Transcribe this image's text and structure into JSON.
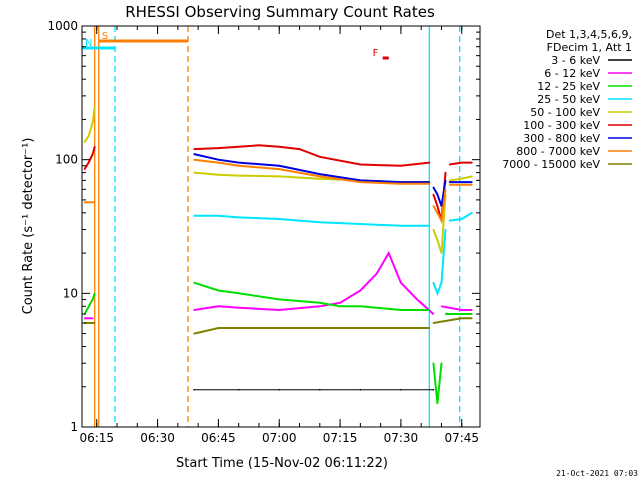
{
  "chart_data": {
    "type": "line",
    "title": "RHESSI Observing Summary Count Rates",
    "xlabel": "Start Time (15-Nov-02 06:11:22)",
    "ylabel": "Count Rate (s⁻¹ detector⁻¹)",
    "yscale": "log",
    "xlim": [
      "06:11:22",
      "07:49:30"
    ],
    "ylim": [
      1,
      1000
    ],
    "x_ticks": [
      "06:15",
      "06:30",
      "06:45",
      "07:00",
      "07:15",
      "07:30",
      "07:45"
    ],
    "y_ticks": [
      "1",
      "10",
      "100",
      "1000"
    ],
    "legend": {
      "placement": "right",
      "header": [
        "Det 1,3,4,5,6,9,",
        "FDecim 1, Att 1"
      ],
      "entries": [
        {
          "label": "3 - 6 keV",
          "color": "#000000"
        },
        {
          "label": "6 - 12 keV",
          "color": "#ff00ff"
        },
        {
          "label": "12 - 25 keV",
          "color": "#00e000"
        },
        {
          "label": "25 - 50 keV",
          "color": "#00e5ff"
        },
        {
          "label": "50 - 100 keV",
          "color": "#cccc00"
        },
        {
          "label": "100 - 300 keV",
          "color": "#e00000"
        },
        {
          "label": "300 - 800 keV",
          "color": "#0000e0"
        },
        {
          "label": "800 - 7000 keV",
          "color": "#ff7f00"
        },
        {
          "label": "7000 - 15000 keV",
          "color": "#808000"
        }
      ]
    },
    "markers": [
      {
        "label": "S",
        "color": "#ff7f00",
        "from": "06:15:30",
        "to": "06:37:30"
      },
      {
        "label": "N",
        "color": "#00e5ff",
        "from": "06:11:22",
        "to": "06:19:30"
      },
      {
        "label": "F",
        "color": "#e00000",
        "from": "07:25:30",
        "to": "07:27:00"
      }
    ],
    "vlines": [
      {
        "time": "06:14:30",
        "color": "#ff7f00",
        "style": "solid"
      },
      {
        "time": "06:15:30",
        "color": "#ff7f00",
        "style": "solid"
      },
      {
        "time": "06:19:30",
        "color": "#00e5ff",
        "style": "dashed"
      },
      {
        "time": "06:37:30",
        "color": "#ff7f00",
        "style": "dashed"
      },
      {
        "time": "07:37:00",
        "color": "#00e5ff",
        "style": "solid"
      },
      {
        "time": "07:44:30",
        "color": "#00e5ff",
        "style": "dashed"
      }
    ],
    "series": [
      {
        "name": "3 - 6 keV",
        "color": "#000000",
        "segments": [
          {
            "x": [
              "06:39:00",
              "06:50:00",
              "07:00:00",
              "07:10:00",
              "07:20:00",
              "07:30:00",
              "07:38:00"
            ],
            "y": [
              1.9,
              1.9,
              1.9,
              1.9,
              1.9,
              1.9,
              1.9
            ]
          }
        ]
      },
      {
        "name": "6 - 12 keV",
        "color": "#ff00ff",
        "segments": [
          {
            "x": [
              "06:12:00",
              "06:14:00"
            ],
            "y": [
              6.5,
              6.5
            ]
          },
          {
            "x": [
              "06:39:00",
              "06:45:00",
              "06:50:00",
              "07:00:00",
              "07:10:00",
              "07:15:00",
              "07:20:00",
              "07:24:00",
              "07:27:00",
              "07:30:00",
              "07:34:00",
              "07:38:00"
            ],
            "y": [
              7.5,
              8,
              7.8,
              7.5,
              8,
              8.5,
              10.5,
              14,
              20,
              12,
              9,
              7
            ]
          },
          {
            "x": [
              "07:40:00",
              "07:45:00",
              "07:47:30"
            ],
            "y": [
              8,
              7.5,
              7.5
            ]
          }
        ]
      },
      {
        "name": "12 - 25 keV",
        "color": "#00e000",
        "segments": [
          {
            "x": [
              "06:12:00",
              "06:14:00",
              "06:14:30"
            ],
            "y": [
              7,
              9,
              10
            ]
          },
          {
            "x": [
              "06:39:00",
              "06:45:00",
              "06:50:00",
              "07:00:00",
              "07:10:00",
              "07:15:00",
              "07:20:00",
              "07:30:00",
              "07:37:00"
            ],
            "y": [
              12,
              10.5,
              10,
              9,
              8.5,
              8,
              8,
              7.5,
              7.5
            ]
          },
          {
            "x": [
              "07:38:00",
              "07:39:00",
              "07:40:00"
            ],
            "y": [
              3,
              1.5,
              3
            ]
          },
          {
            "x": [
              "07:41:00",
              "07:45:00",
              "07:47:30"
            ],
            "y": [
              7,
              7,
              7
            ]
          }
        ]
      },
      {
        "name": "25 - 50 keV",
        "color": "#00e5ff",
        "segments": [
          {
            "x": [
              "06:39:00",
              "06:45:00",
              "06:50:00",
              "07:00:00",
              "07:10:00",
              "07:20:00",
              "07:30:00",
              "07:37:00"
            ],
            "y": [
              38,
              38,
              37,
              36,
              34,
              33,
              32,
              32
            ]
          },
          {
            "x": [
              "07:38:00",
              "07:39:00",
              "07:40:00",
              "07:41:00"
            ],
            "y": [
              12,
              10,
              12,
              30
            ]
          },
          {
            "x": [
              "07:42:00",
              "07:45:00",
              "07:47:30"
            ],
            "y": [
              35,
              36,
              40
            ]
          }
        ]
      },
      {
        "name": "50 - 100 keV",
        "color": "#cccc00",
        "segments": [
          {
            "x": [
              "06:12:00",
              "06:13:00",
              "06:14:00",
              "06:14:30"
            ],
            "y": [
              135,
              150,
              190,
              250
            ]
          },
          {
            "x": [
              "06:39:00",
              "06:45:00",
              "06:50:00",
              "07:00:00",
              "07:10:00",
              "07:20:00",
              "07:30:00",
              "07:37:00"
            ],
            "y": [
              80,
              77,
              76,
              75,
              72,
              70,
              68,
              68
            ]
          },
          {
            "x": [
              "07:38:00",
              "07:39:00",
              "07:40:00",
              "07:41:00"
            ],
            "y": [
              30,
              25,
              20,
              55
            ]
          },
          {
            "x": [
              "07:42:00",
              "07:45:00",
              "07:47:30"
            ],
            "y": [
              70,
              72,
              75
            ]
          }
        ]
      },
      {
        "name": "100 - 300 keV",
        "color": "#e00000",
        "segments": [
          {
            "x": [
              "06:12:00",
              "06:13:00",
              "06:14:00",
              "06:14:30"
            ],
            "y": [
              85,
              95,
              110,
              125
            ]
          },
          {
            "x": [
              "06:39:00",
              "06:45:00",
              "06:50:00",
              "06:55:00",
              "07:00:00",
              "07:05:00",
              "07:10:00",
              "07:20:00",
              "07:30:00",
              "07:37:00"
            ],
            "y": [
              120,
              122,
              125,
              128,
              125,
              120,
              105,
              92,
              90,
              95
            ]
          },
          {
            "x": [
              "07:38:00",
              "07:39:00",
              "07:40:00",
              "07:41:00"
            ],
            "y": [
              55,
              45,
              35,
              80
            ]
          },
          {
            "x": [
              "07:42:00",
              "07:45:00",
              "07:47:30"
            ],
            "y": [
              92,
              95,
              95
            ]
          }
        ]
      },
      {
        "name": "300 - 800 keV",
        "color": "#0000e0",
        "segments": [
          {
            "x": [
              "06:39:00",
              "06:45:00",
              "06:50:00",
              "07:00:00",
              "07:10:00",
              "07:20:00",
              "07:30:00",
              "07:37:00"
            ],
            "y": [
              110,
              100,
              95,
              90,
              78,
              70,
              68,
              68
            ]
          },
          {
            "x": [
              "07:38:00",
              "07:39:00",
              "07:40:00",
              "07:41:00"
            ],
            "y": [
              62,
              55,
              45,
              70
            ]
          },
          {
            "x": [
              "07:42:00",
              "07:45:00",
              "07:47:30"
            ],
            "y": [
              68,
              68,
              68
            ]
          }
        ]
      },
      {
        "name": "800 - 7000 keV",
        "color": "#ff7f00",
        "segments": [
          {
            "x": [
              "06:12:00",
              "06:14:30"
            ],
            "y": [
              48,
              48
            ]
          },
          {
            "x": [
              "06:39:00",
              "06:45:00",
              "06:50:00",
              "07:00:00",
              "07:10:00",
              "07:20:00",
              "07:30:00",
              "07:37:00"
            ],
            "y": [
              100,
              95,
              90,
              85,
              75,
              68,
              66,
              66
            ]
          },
          {
            "x": [
              "07:38:00",
              "07:39:00",
              "07:40:00",
              "07:41:00"
            ],
            "y": [
              45,
              40,
              35,
              60
            ]
          },
          {
            "x": [
              "07:42:00",
              "07:45:00",
              "07:47:30"
            ],
            "y": [
              65,
              65,
              65
            ]
          }
        ]
      },
      {
        "name": "7000 - 15000 keV",
        "color": "#808000",
        "segments": [
          {
            "x": [
              "06:12:00",
              "06:14:30"
            ],
            "y": [
              6,
              6
            ]
          },
          {
            "x": [
              "06:39:00",
              "06:45:00",
              "06:50:00",
              "07:00:00",
              "07:10:00",
              "07:20:00",
              "07:30:00",
              "07:37:00"
            ],
            "y": [
              5,
              5.5,
              5.5,
              5.5,
              5.5,
              5.5,
              5.5,
              5.5
            ]
          },
          {
            "x": [
              "07:38:00",
              "07:45:00",
              "07:47:30"
            ],
            "y": [
              6,
              6.5,
              6.5
            ]
          }
        ]
      }
    ]
  },
  "footer": {
    "timestamp": "21-Oct-2021 07:03"
  }
}
